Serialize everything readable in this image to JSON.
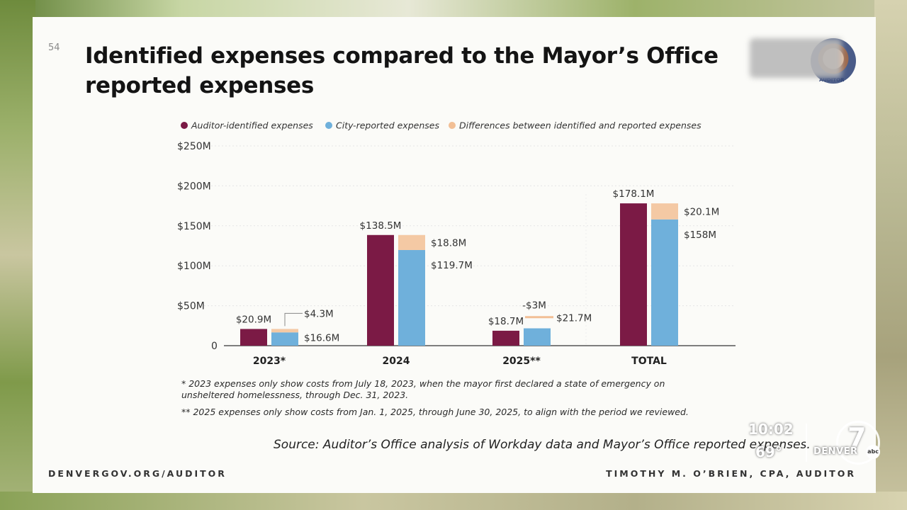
{
  "slide": {
    "page_number": "54",
    "title": "Identified expenses compared to the Mayor’s Office reported expenses",
    "seal_text": "AUDITOR",
    "footnote_1": "* 2023 expenses only show costs from July 18, 2023, when the mayor first declared a state of emergency on unsheltered homelessness, through Dec. 31, 2023.",
    "footnote_2": "** 2025 expenses only show costs from Jan. 1, 2025, through June 30, 2025, to align with the period we reviewed.",
    "source": "Source: Auditor’s Office analysis of Workday data and Mayor’s Office reported expenses.",
    "footer_left": "DENVERGOV.ORG/AUDITOR",
    "footer_right": "TIMOTHY M. O’BRIEN, CPA, AUDITOR"
  },
  "tv_overlay": {
    "time": "10:02",
    "temperature": "69°",
    "station_name": "DENVER",
    "channel": "7",
    "network": "abc"
  },
  "colors": {
    "auditor": "#7b1a45",
    "city": "#6fb0db",
    "difference": "#f2bf95"
  },
  "chart_data": {
    "type": "bar",
    "categories": [
      "2023*",
      "2024",
      "2025**",
      "TOTAL"
    ],
    "ylim": [
      0,
      250
    ],
    "y_ticks": [
      {
        "value": 0,
        "label": "0"
      },
      {
        "value": 50,
        "label": "$50M"
      },
      {
        "value": 100,
        "label": "$100M"
      },
      {
        "value": 150,
        "label": "$150M"
      },
      {
        "value": 200,
        "label": "$200M"
      },
      {
        "value": 250,
        "label": "$250M"
      }
    ],
    "grid": true,
    "legend_position": "top",
    "series": [
      {
        "name": "Auditor-identified expenses",
        "values": [
          20.9,
          138.5,
          18.7,
          178.1
        ],
        "labels": [
          "$20.9M",
          "$138.5M",
          "$18.7M",
          "$178.1M"
        ]
      },
      {
        "name": "City-reported expenses",
        "values": [
          16.6,
          119.7,
          21.7,
          158
        ],
        "labels": [
          "$16.6M",
          "$119.7M",
          "$21.7M",
          "$158M"
        ]
      },
      {
        "name": "Differences between identified and reported expenses",
        "values": [
          4.3,
          18.8,
          -3,
          20.1
        ],
        "labels": [
          "$4.3M",
          "$18.8M",
          "-$3M",
          "$20.1M"
        ]
      }
    ]
  }
}
